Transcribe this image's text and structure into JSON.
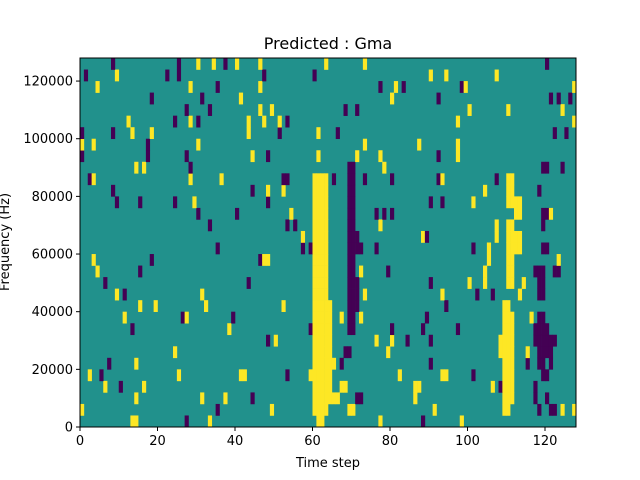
{
  "chart_data": {
    "type": "heatmap",
    "title": "Predicted : Gma",
    "xlabel": "Time step",
    "ylabel": "Frequency (Hz)",
    "xlim": [
      0,
      128
    ],
    "ylim": [
      0,
      128000
    ],
    "x_ticks": [
      0,
      20,
      40,
      60,
      80,
      100,
      120
    ],
    "y_ticks": [
      0,
      20000,
      40000,
      60000,
      80000,
      100000,
      120000
    ],
    "x_tick_labels": [
      "0",
      "20",
      "40",
      "60",
      "80",
      "100",
      "120"
    ],
    "y_tick_labels": [
      "0",
      "20000",
      "40000",
      "60000",
      "80000",
      "100000",
      "120000"
    ],
    "n_time_steps": 128,
    "n_frequency_bins": 32,
    "bin_height_hz": 4000,
    "value_levels": [
      -1,
      0,
      1
    ],
    "colormap": {
      "-1": "#440154",
      "0": "#21918c",
      "1": "#fde725"
    },
    "grid": false,
    "background_value": 0,
    "events": [
      {
        "t0": 60,
        "t1": 64,
        "f0": 4000,
        "f1": 88000,
        "value": 1
      },
      {
        "t0": 61,
        "t1": 63,
        "f0": 0,
        "f1": 4000,
        "value": 1
      },
      {
        "t0": 62,
        "t1": 65,
        "f0": 8000,
        "f1": 44000,
        "value": 1
      },
      {
        "t0": 63,
        "t1": 65,
        "f0": 16000,
        "f1": 40000,
        "value": 1
      },
      {
        "t0": 64,
        "t1": 67,
        "f0": 8000,
        "f1": 12000,
        "value": 1
      },
      {
        "t0": 69,
        "t1": 71,
        "f0": 32000,
        "f1": 92000,
        "value": -1
      },
      {
        "t0": 70,
        "t1": 72,
        "f0": 40000,
        "f1": 52000,
        "value": -1
      },
      {
        "t0": 71,
        "t1": 73,
        "f0": 8000,
        "f1": 12000,
        "value": -1
      },
      {
        "t0": 68,
        "t1": 70,
        "f0": 24000,
        "f1": 28000,
        "value": -1
      },
      {
        "t0": 71,
        "t1": 72,
        "f0": 60000,
        "f1": 68000,
        "value": -1
      },
      {
        "t0": 109,
        "t1": 112,
        "f0": 8000,
        "f1": 40000,
        "value": 1
      },
      {
        "t0": 108,
        "t1": 110,
        "f0": 24000,
        "f1": 32000,
        "value": 1
      },
      {
        "t0": 110,
        "t1": 112,
        "f0": 48000,
        "f1": 72000,
        "value": 1
      },
      {
        "t0": 110,
        "t1": 112,
        "f0": 76000,
        "f1": 88000,
        "value": 1
      },
      {
        "t0": 112,
        "t1": 114,
        "f0": 72000,
        "f1": 80000,
        "value": 1
      },
      {
        "t0": 112,
        "t1": 114,
        "f0": 60000,
        "f1": 68000,
        "value": 1
      },
      {
        "t0": 109,
        "t1": 111,
        "f0": 4000,
        "f1": 8000,
        "value": 1
      },
      {
        "t0": 109,
        "t1": 111,
        "f0": 40000,
        "f1": 44000,
        "value": 1
      },
      {
        "t0": 104,
        "t1": 105,
        "f0": 48000,
        "f1": 56000,
        "value": 1
      },
      {
        "t0": 105,
        "t1": 106,
        "f0": 60000,
        "f1": 64000,
        "value": 1
      },
      {
        "t0": 118,
        "t1": 120,
        "f0": 20000,
        "f1": 40000,
        "value": -1
      },
      {
        "t0": 117,
        "t1": 119,
        "f0": 28000,
        "f1": 32000,
        "value": -1
      },
      {
        "t0": 120,
        "t1": 122,
        "f0": 24000,
        "f1": 32000,
        "value": -1
      },
      {
        "t0": 119,
        "t1": 121,
        "f0": 16000,
        "f1": 20000,
        "value": -1
      },
      {
        "t0": 118,
        "t1": 120,
        "f0": 44000,
        "f1": 56000,
        "value": -1
      },
      {
        "t0": 122,
        "t1": 124,
        "f0": 52000,
        "f1": 56000,
        "value": -1
      },
      {
        "t0": 119,
        "t1": 121,
        "f0": 60000,
        "f1": 64000,
        "value": -1
      },
      {
        "t0": 119,
        "t1": 120,
        "f0": 68000,
        "f1": 76000,
        "value": -1
      },
      {
        "t0": 119,
        "t1": 121,
        "f0": 88000,
        "f1": 92000,
        "value": -1
      },
      {
        "t0": 118,
        "t1": 119,
        "f0": 80000,
        "f1": 84000,
        "value": -1
      },
      {
        "t0": 117,
        "t1": 118,
        "f0": 8000,
        "f1": 16000,
        "value": -1
      }
    ],
    "noise_seed": 7,
    "noise_probability": 0.06
  }
}
